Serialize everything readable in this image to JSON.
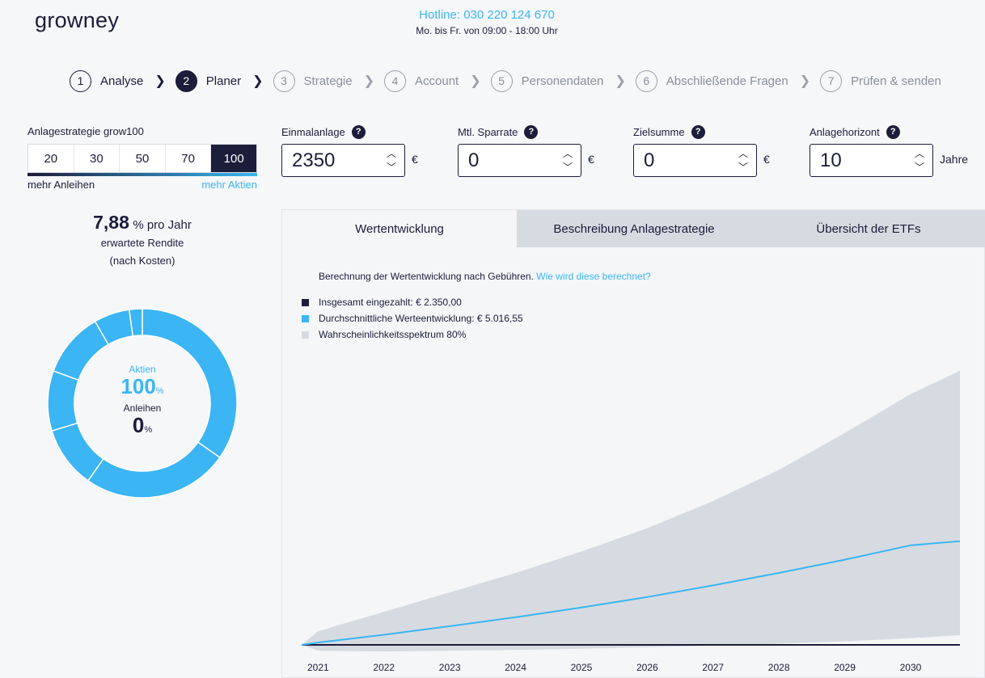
{
  "brand": {
    "logo": "growney"
  },
  "contact": {
    "hotline": "Hotline: 030 220 124 670",
    "hours": "Mo. bis Fr. von 09:00 - 18:00 Uhr"
  },
  "steps": [
    {
      "num": "1",
      "label": "Analyse"
    },
    {
      "num": "2",
      "label": "Planer"
    },
    {
      "num": "3",
      "label": "Strategie"
    },
    {
      "num": "4",
      "label": "Account"
    },
    {
      "num": "5",
      "label": "Personendaten"
    },
    {
      "num": "6",
      "label": "Abschließende Fragen"
    },
    {
      "num": "7",
      "label": "Prüfen & senden"
    }
  ],
  "strategy": {
    "label": "Anlagestrategie grow100",
    "options": [
      "20",
      "30",
      "50",
      "70",
      "100"
    ],
    "selected": "100",
    "left_hint": "mehr Anleihen",
    "right_hint": "mehr Aktien"
  },
  "inputs": {
    "einmalanlage": {
      "label": "Einmalanlage",
      "value": "2350",
      "unit": "€"
    },
    "sparrate": {
      "label": "Mtl. Sparrate",
      "value": "0",
      "unit": "€"
    },
    "zielsumme": {
      "label": "Zielsumme",
      "value": "0",
      "unit": "€"
    },
    "horizont": {
      "label": "Anlagehorizont",
      "value": "10",
      "unit": "Jahre"
    },
    "help_glyph": "?"
  },
  "rendite": {
    "value": "7,88",
    "suffix": "% pro Jahr",
    "line1": "erwartete Rendite",
    "line2": "(nach Kosten)"
  },
  "allocation": {
    "stocks_label": "Aktien",
    "stocks_value": "100",
    "stocks_unit": "%",
    "bonds_label": "Anleihen",
    "bonds_value": "0",
    "bonds_unit": "%",
    "segments_deg": [
      [
        0,
        125
      ],
      [
        125,
        215
      ],
      [
        215,
        253
      ],
      [
        253,
        290
      ],
      [
        290,
        330
      ],
      [
        330,
        352
      ],
      [
        352,
        360
      ]
    ],
    "color": "#3bb5f3"
  },
  "tabs": [
    "Wertentwicklung",
    "Beschreibung Anlagestrategie",
    "Übersicht der ETFs"
  ],
  "calc": {
    "text": "Berechnung der Wertentwicklung nach Gebühren.",
    "link": "Wie wird diese berechnet?"
  },
  "legend": [
    {
      "label": "Insgesamt eingezahlt: € 2.350,00",
      "color": "#1b1d3a"
    },
    {
      "label": "Durchschnittliche Werteentwicklung: € 5.016,55",
      "color": "#3bb5f3"
    },
    {
      "label": "Wahrscheinlichkeitsspektrum 80%",
      "color": "#d5dbe1"
    }
  ],
  "chart_data": {
    "type": "area",
    "x": [
      2020.75,
      2021,
      2022,
      2023,
      2024,
      2025,
      2026,
      2027,
      2028,
      2029,
      2030,
      2030.75
    ],
    "xticks": [
      "2021",
      "2022",
      "2023",
      "2024",
      "2025",
      "2026",
      "2027",
      "2028",
      "2029",
      "2030"
    ],
    "series": [
      {
        "name": "Insgesamt eingezahlt",
        "values": [
          2350,
          2350,
          2350,
          2350,
          2350,
          2350,
          2350,
          2350,
          2350,
          2350,
          2350,
          2350
        ],
        "color": "#1b1d3a"
      },
      {
        "name": "Durchschnittliche Werteentwicklung",
        "values": [
          2350,
          2410,
          2610,
          2830,
          3060,
          3310,
          3580,
          3880,
          4200,
          4540,
          4910,
          5017
        ],
        "color": "#3bb5f3"
      },
      {
        "name": "Wahrscheinlichkeitsspektrum 80% (oben)",
        "values": [
          2350,
          2700,
          3200,
          3700,
          4200,
          4750,
          5350,
          6050,
          6850,
          7800,
          8800,
          9400
        ],
        "color": "#d5dbe1"
      },
      {
        "name": "Wahrscheinlichkeitsspektrum 80% (unten)",
        "values": [
          2350,
          2200,
          2180,
          2200,
          2220,
          2250,
          2290,
          2330,
          2380,
          2440,
          2520,
          2600
        ],
        "color": "#d5dbe1"
      }
    ],
    "ylim": [
      2100,
      10000
    ]
  }
}
